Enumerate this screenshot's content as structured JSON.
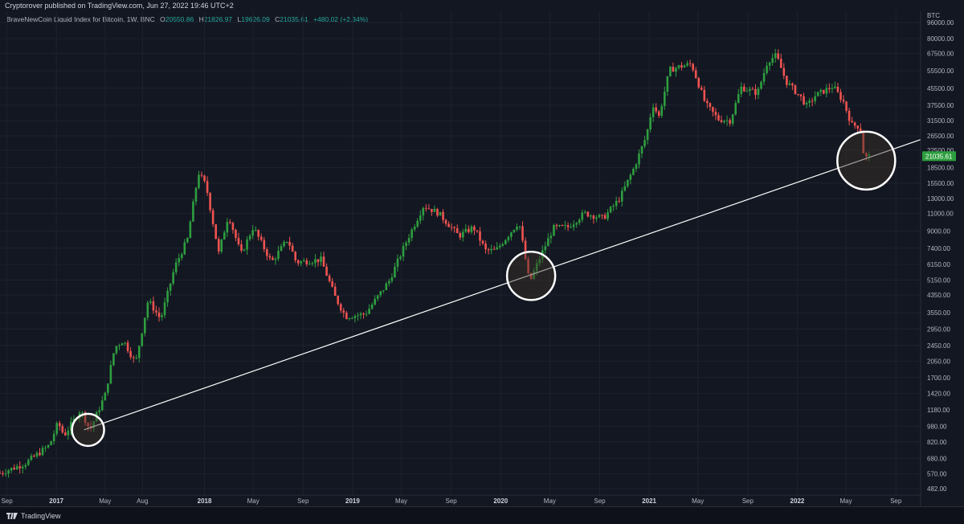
{
  "header": {
    "published": "Cryptorover published on TradingView.com, Jun 27, 2022 19:46 UTC+2"
  },
  "legend": {
    "symbol": "BraveNewCoin Liquid Index for Bitcoin, 1W, BNC",
    "o_label": "O",
    "o_value": "20550.86",
    "h_label": "H",
    "h_value": "21826.97",
    "l_label": "L",
    "l_value": "19626.09",
    "c_label": "C",
    "c_value": "21035.61",
    "change": "+480.02 (+2.34%)"
  },
  "footer": {
    "brand": "TradingView"
  },
  "colors": {
    "background": "#131722",
    "up": "#26a69a",
    "up_candle": "#2e9e3f",
    "down_candle": "#ef5350",
    "grid": "#1e222d",
    "price_tag": "#2e9e3f"
  },
  "chart_data": {
    "type": "candlestick",
    "scale": "log",
    "currency": "BTC",
    "interval": "1W",
    "y_ticks": [
      "96000.00",
      "80000.00",
      "67500.00",
      "55500.00",
      "45500.00",
      "37500.00",
      "31500.00",
      "26500.00",
      "22500.00",
      "18500.00",
      "15500.00",
      "13000.00",
      "11000.00",
      "9000.00",
      "7400.00",
      "6150.00",
      "5150.00",
      "4350.00",
      "3550.00",
      "2950.00",
      "2450.00",
      "2050.00",
      "1700.00",
      "1420.00",
      "1180.00",
      "980.00",
      "820.00",
      "680.00",
      "570.00",
      "482.00"
    ],
    "x_ticks": [
      "Sep",
      "2017",
      "May",
      "Aug",
      "2018",
      "May",
      "Sep",
      "2019",
      "May",
      "Sep",
      "2020",
      "May",
      "Sep",
      "2021",
      "May",
      "Sep",
      "2022",
      "May",
      "Sep"
    ],
    "x_tick_dates": [
      "2016-09-01",
      "2017-01-01",
      "2017-05-01",
      "2017-08-01",
      "2018-01-01",
      "2018-05-01",
      "2018-09-01",
      "2019-01-01",
      "2019-05-01",
      "2019-09-01",
      "2020-01-01",
      "2020-05-01",
      "2020-09-01",
      "2021-01-01",
      "2021-05-01",
      "2021-09-01",
      "2022-01-01",
      "2022-05-01",
      "2022-09-01"
    ],
    "x_range": [
      "2016-08-15",
      "2022-11-01"
    ],
    "y_range": [
      482,
      96000
    ],
    "last_price": "21035.61",
    "anchors": [
      [
        "2016-08-15",
        575
      ],
      [
        "2016-10-15",
        640
      ],
      [
        "2016-12-15",
        790
      ],
      [
        "2017-01-05",
        1020
      ],
      [
        "2017-01-20",
        880
      ],
      [
        "2017-03-01",
        1180
      ],
      [
        "2017-03-25",
        940
      ],
      [
        "2017-05-01",
        1400
      ],
      [
        "2017-05-25",
        2400
      ],
      [
        "2017-06-15",
        2600
      ],
      [
        "2017-07-15",
        2000
      ],
      [
        "2017-08-15",
        4100
      ],
      [
        "2017-09-15",
        3300
      ],
      [
        "2017-10-20",
        6000
      ],
      [
        "2017-11-20",
        8200
      ],
      [
        "2017-12-17",
        17500
      ],
      [
        "2018-01-05",
        15000
      ],
      [
        "2018-02-05",
        7000
      ],
      [
        "2018-03-01",
        10800
      ],
      [
        "2018-04-01",
        6900
      ],
      [
        "2018-05-01",
        9400
      ],
      [
        "2018-06-15",
        6300
      ],
      [
        "2018-07-25",
        8200
      ],
      [
        "2018-08-15",
        6300
      ],
      [
        "2018-10-15",
        6500
      ],
      [
        "2018-11-20",
        4200
      ],
      [
        "2018-12-15",
        3400
      ],
      [
        "2019-02-01",
        3500
      ],
      [
        "2019-04-01",
        5100
      ],
      [
        "2019-05-15",
        8100
      ],
      [
        "2019-06-25",
        12000
      ],
      [
        "2019-08-01",
        11000
      ],
      [
        "2019-09-20",
        8500
      ],
      [
        "2019-10-26",
        9400
      ],
      [
        "2019-11-25",
        7200
      ],
      [
        "2019-12-20",
        7200
      ],
      [
        "2020-01-20",
        8600
      ],
      [
        "2020-02-15",
        10000
      ],
      [
        "2020-03-12",
        5000
      ],
      [
        "2020-04-10",
        6900
      ],
      [
        "2020-05-10",
        9300
      ],
      [
        "2020-06-15",
        9400
      ],
      [
        "2020-07-25",
        11000
      ],
      [
        "2020-09-10",
        10400
      ],
      [
        "2020-10-20",
        13000
      ],
      [
        "2020-11-25",
        18500
      ],
      [
        "2020-12-25",
        26500
      ],
      [
        "2021-01-10",
        38000
      ],
      [
        "2021-01-25",
        33000
      ],
      [
        "2021-02-20",
        56000
      ],
      [
        "2021-03-15",
        58000
      ],
      [
        "2021-04-15",
        60000
      ],
      [
        "2021-05-20",
        38000
      ],
      [
        "2021-06-20",
        32000
      ],
      [
        "2021-07-20",
        31500
      ],
      [
        "2021-08-15",
        46000
      ],
      [
        "2021-09-25",
        43000
      ],
      [
        "2021-10-20",
        62000
      ],
      [
        "2021-11-10",
        66000
      ],
      [
        "2021-12-05",
        49000
      ],
      [
        "2022-01-10",
        41000
      ],
      [
        "2022-01-25",
        37000
      ],
      [
        "2022-02-15",
        42000
      ],
      [
        "2022-03-30",
        46500
      ],
      [
        "2022-04-25",
        39000
      ],
      [
        "2022-05-15",
        30000
      ],
      [
        "2022-06-05",
        29500
      ],
      [
        "2022-06-15",
        20500
      ],
      [
        "2022-06-27",
        21035
      ]
    ],
    "trendline": {
      "from": [
        "2017-03-10",
        940
      ],
      "to_slope_through": [
        "2022-06-20",
        20500
      ],
      "color": "#ffffff"
    },
    "highlights": [
      {
        "date": "2017-03-20",
        "price": 940
      },
      {
        "date": "2020-03-16",
        "price": 5400
      },
      {
        "date": "2022-06-20",
        "price": 20000
      }
    ]
  }
}
